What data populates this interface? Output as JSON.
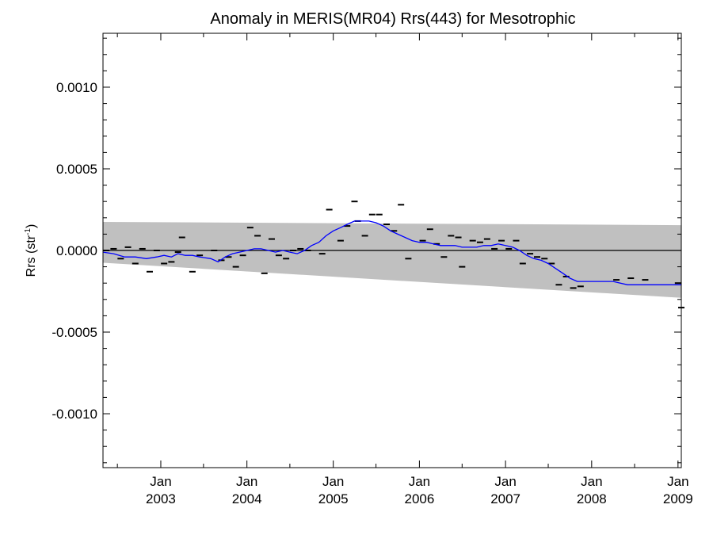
{
  "chart_data": {
    "type": "line",
    "title": "Anomaly in MERIS(MR04) Rrs(443) for Mesotrophic",
    "ylabel": "Rrs (str",
    "ylabel_sup": "-1",
    "ylabel_close": ")",
    "xlabel": "",
    "ylim": [
      -0.00133,
      0.00133
    ],
    "xlim": [
      "2002-05-01",
      "2009-01-15"
    ],
    "grid": false,
    "y_ticks": [
      {
        "value": 0.001,
        "label": "0.0010"
      },
      {
        "value": 0.0005,
        "label": "0.0005"
      },
      {
        "value": 0.0,
        "label": "0.0000"
      },
      {
        "value": -0.0005,
        "label": "-0.0005"
      },
      {
        "value": -0.001,
        "label": "-0.0010"
      }
    ],
    "x_ticks": [
      {
        "date": "2003-01-01",
        "month": "Jan",
        "year": "2003"
      },
      {
        "date": "2004-01-01",
        "month": "Jan",
        "year": "2004"
      },
      {
        "date": "2005-01-01",
        "month": "Jan",
        "year": "2005"
      },
      {
        "date": "2006-01-01",
        "month": "Jan",
        "year": "2006"
      },
      {
        "date": "2007-01-01",
        "month": "Jan",
        "year": "2007"
      },
      {
        "date": "2008-01-01",
        "month": "Jan",
        "year": "2008"
      },
      {
        "date": "2009-01-01",
        "month": "Jan",
        "year": "2009"
      }
    ],
    "envelope": {
      "color": "#c0c0c0",
      "start_date": "2002-05-01",
      "end_date": "2009-01-15",
      "upper": [
        0.000175,
        0.000155
      ],
      "lower": [
        -7.5e-05,
        -0.00029
      ]
    },
    "zero_line_color": "#000000",
    "series": [
      {
        "kind": "points",
        "color": "#000000",
        "points": [
          [
            "2002-05-15",
            0.0
          ],
          [
            "2002-06-15",
            1e-05
          ],
          [
            "2002-07-15",
            -5e-05
          ],
          [
            "2002-08-15",
            2e-05
          ],
          [
            "2002-09-15",
            -8e-05
          ],
          [
            "2002-10-15",
            1e-05
          ],
          [
            "2002-11-15",
            -0.00013
          ],
          [
            "2002-12-15",
            0.0
          ],
          [
            "2003-01-15",
            -8e-05
          ],
          [
            "2003-02-15",
            -7e-05
          ],
          [
            "2003-03-15",
            -1e-05
          ],
          [
            "2003-04-01",
            8e-05
          ],
          [
            "2003-05-15",
            -0.00013
          ],
          [
            "2003-06-15",
            -3e-05
          ],
          [
            "2003-08-15",
            0.0
          ],
          [
            "2003-09-15",
            -6e-05
          ],
          [
            "2003-10-15",
            -4e-05
          ],
          [
            "2003-11-15",
            -0.0001
          ],
          [
            "2003-12-15",
            -3e-05
          ],
          [
            "2004-01-15",
            0.00014
          ],
          [
            "2004-02-15",
            9e-05
          ],
          [
            "2004-03-15",
            -0.00014
          ],
          [
            "2004-04-15",
            7e-05
          ],
          [
            "2004-05-15",
            -3e-05
          ],
          [
            "2004-06-15",
            -5e-05
          ],
          [
            "2004-07-15",
            0.0
          ],
          [
            "2004-08-15",
            1e-05
          ],
          [
            "2004-09-15",
            0.0
          ],
          [
            "2004-11-15",
            -2e-05
          ],
          [
            "2004-12-15",
            0.00025
          ],
          [
            "2005-02-01",
            6e-05
          ],
          [
            "2005-03-01",
            0.00015
          ],
          [
            "2005-04-01",
            0.0003
          ],
          [
            "2005-04-15",
            0.00018
          ],
          [
            "2005-05-15",
            9e-05
          ],
          [
            "2005-06-15",
            0.00022
          ],
          [
            "2005-07-15",
            0.00022
          ],
          [
            "2005-08-15",
            0.00016
          ],
          [
            "2005-09-15",
            0.00012
          ],
          [
            "2005-10-15",
            0.00028
          ],
          [
            "2005-11-15",
            -5e-05
          ],
          [
            "2006-01-15",
            6e-05
          ],
          [
            "2006-02-15",
            0.00013
          ],
          [
            "2006-03-15",
            4e-05
          ],
          [
            "2006-04-15",
            -4e-05
          ],
          [
            "2006-05-15",
            9e-05
          ],
          [
            "2006-06-15",
            8e-05
          ],
          [
            "2006-07-01",
            -0.0001
          ],
          [
            "2006-08-15",
            6e-05
          ],
          [
            "2006-09-15",
            5e-05
          ],
          [
            "2006-10-15",
            7e-05
          ],
          [
            "2006-11-15",
            1e-05
          ],
          [
            "2006-12-15",
            6e-05
          ],
          [
            "2007-01-15",
            1e-05
          ],
          [
            "2007-02-15",
            6e-05
          ],
          [
            "2007-03-15",
            -8e-05
          ],
          [
            "2007-04-15",
            -2e-05
          ],
          [
            "2007-05-15",
            -4e-05
          ],
          [
            "2007-06-15",
            -5e-05
          ],
          [
            "2007-07-15",
            -8e-05
          ],
          [
            "2007-08-15",
            -0.00021
          ],
          [
            "2007-09-15",
            -0.00016
          ],
          [
            "2007-10-15",
            -0.00023
          ],
          [
            "2007-11-15",
            -0.00022
          ],
          [
            "2008-04-15",
            -0.00018
          ],
          [
            "2008-06-15",
            -0.00017
          ],
          [
            "2008-08-15",
            -0.00018
          ],
          [
            "2009-01-01",
            -0.0002
          ],
          [
            "2009-01-15",
            -0.00035
          ]
        ]
      },
      {
        "kind": "line",
        "color": "#0000ff",
        "points": [
          [
            "2002-05-01",
            -1e-05
          ],
          [
            "2002-06-15",
            -2e-05
          ],
          [
            "2002-08-01",
            -4e-05
          ],
          [
            "2002-09-15",
            -4e-05
          ],
          [
            "2002-11-01",
            -5e-05
          ],
          [
            "2002-12-15",
            -4e-05
          ],
          [
            "2003-01-15",
            -3e-05
          ],
          [
            "2003-02-15",
            -4e-05
          ],
          [
            "2003-03-15",
            -2e-05
          ],
          [
            "2003-04-15",
            -3e-05
          ],
          [
            "2003-05-15",
            -3e-05
          ],
          [
            "2003-06-15",
            -4e-05
          ],
          [
            "2003-08-01",
            -5e-05
          ],
          [
            "2003-09-01",
            -7e-05
          ],
          [
            "2003-10-01",
            -4e-05
          ],
          [
            "2003-11-01",
            -2e-05
          ],
          [
            "2003-12-01",
            -1e-05
          ],
          [
            "2004-01-01",
            0.0
          ],
          [
            "2004-02-01",
            1e-05
          ],
          [
            "2004-03-01",
            1e-05
          ],
          [
            "2004-04-01",
            0.0
          ],
          [
            "2004-05-01",
            -1e-05
          ],
          [
            "2004-06-01",
            0.0
          ],
          [
            "2004-07-01",
            -1e-05
          ],
          [
            "2004-08-01",
            -2e-05
          ],
          [
            "2004-09-01",
            0.0
          ],
          [
            "2004-10-01",
            3e-05
          ],
          [
            "2004-11-01",
            5e-05
          ],
          [
            "2004-12-01",
            9e-05
          ],
          [
            "2005-01-01",
            0.00012
          ],
          [
            "2005-02-01",
            0.00014
          ],
          [
            "2005-03-01",
            0.00016
          ],
          [
            "2005-04-01",
            0.00018
          ],
          [
            "2005-05-01",
            0.00018
          ],
          [
            "2005-06-01",
            0.00018
          ],
          [
            "2005-07-01",
            0.00017
          ],
          [
            "2005-08-01",
            0.00015
          ],
          [
            "2005-09-01",
            0.00012
          ],
          [
            "2005-10-01",
            0.0001
          ],
          [
            "2005-11-01",
            8e-05
          ],
          [
            "2005-12-01",
            6e-05
          ],
          [
            "2006-01-01",
            5e-05
          ],
          [
            "2006-02-01",
            5e-05
          ],
          [
            "2006-03-01",
            4e-05
          ],
          [
            "2006-04-01",
            3e-05
          ],
          [
            "2006-05-01",
            3e-05
          ],
          [
            "2006-06-01",
            3e-05
          ],
          [
            "2006-07-01",
            2e-05
          ],
          [
            "2006-08-01",
            2e-05
          ],
          [
            "2006-09-01",
            2e-05
          ],
          [
            "2006-10-01",
            3e-05
          ],
          [
            "2006-11-01",
            3e-05
          ],
          [
            "2006-12-01",
            4e-05
          ],
          [
            "2007-01-01",
            3e-05
          ],
          [
            "2007-02-01",
            2e-05
          ],
          [
            "2007-03-01",
            0.0
          ],
          [
            "2007-04-01",
            -3e-05
          ],
          [
            "2007-05-01",
            -5e-05
          ],
          [
            "2007-06-01",
            -6e-05
          ],
          [
            "2007-07-01",
            -8e-05
          ],
          [
            "2007-08-01",
            -0.00011
          ],
          [
            "2007-09-01",
            -0.00014
          ],
          [
            "2007-10-01",
            -0.00017
          ],
          [
            "2007-11-01",
            -0.00019
          ],
          [
            "2008-01-01",
            -0.00019
          ],
          [
            "2008-04-01",
            -0.00019
          ],
          [
            "2008-06-01",
            -0.00021
          ],
          [
            "2008-09-01",
            -0.00021
          ],
          [
            "2009-01-15",
            -0.00021
          ]
        ]
      }
    ]
  }
}
